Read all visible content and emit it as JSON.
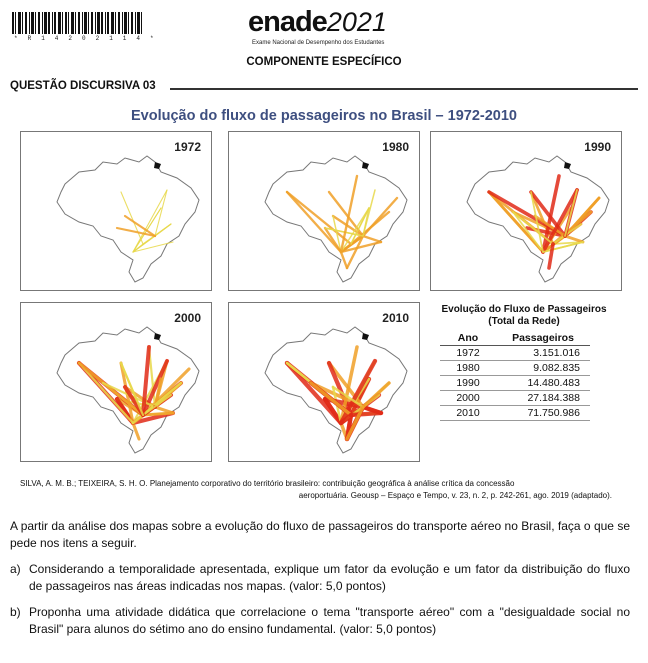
{
  "header": {
    "barcode_number": "* R 1 4 2 0 2 1 1 4 *",
    "logo_main": "enade",
    "logo_year": "2021",
    "logo_subtitle": "Exame Nacional de Desempenho dos Estudantes",
    "component": "COMPONENTE ESPECÍFICO"
  },
  "question": {
    "label": "QUESTÃO DISCURSIVA 03"
  },
  "figure": {
    "title": "Evolução do fluxo de passageiros no Brasil – 1972-2010",
    "maps": [
      {
        "year": "1972"
      },
      {
        "year": "1980"
      },
      {
        "year": "1990"
      },
      {
        "year": "2000"
      },
      {
        "year": "2010"
      }
    ],
    "table": {
      "title_line1": "Evolução do Fluxo de Passageiros",
      "title_line2": "(Total da Rede)",
      "columns": [
        "Ano",
        "Passageiros"
      ],
      "rows": [
        [
          "1972",
          "3.151.016"
        ],
        [
          "1980",
          "9.082.835"
        ],
        [
          "1990",
          "14.480.483"
        ],
        [
          "2000",
          "27.184.388"
        ],
        [
          "2010",
          "71.750.986"
        ]
      ]
    },
    "colors": {
      "low": "#e8d84a",
      "mid": "#f0a028",
      "high": "#e02a18",
      "title": "#3e4f80"
    }
  },
  "source": {
    "line1": "SILVA, A. M. B.; TEIXEIRA, S. H. O. Planejamento corporativo do território brasileiro: contribuição geográfica à análise crítica da concessão",
    "line2": "aeroportuária. Geousp – Espaço e Tempo, v. 23, n. 2, p. 242-261, ago. 2019 (adaptado)."
  },
  "intro": "A partir da análise dos mapas sobre a evolução do fluxo de passageiros do transporte aéreo no Brasil, faça o que se pede nos itens a seguir.",
  "items": [
    {
      "letter": "a)",
      "text": "Considerando a temporalidade apresentada, explique um fator da evolução e um fator da distribuição do fluxo de passageiros nas áreas indicadas nos mapas. (valor: 5,0 pontos)"
    },
    {
      "letter": "b)",
      "text": "Proponha uma atividade didática que correlacione o tema \"transporte aéreo\" com a \"desigualdade social no Brasil\" para alunos do sétimo ano do ensino fundamental. (valor: 5,0 pontos)"
    }
  ]
}
